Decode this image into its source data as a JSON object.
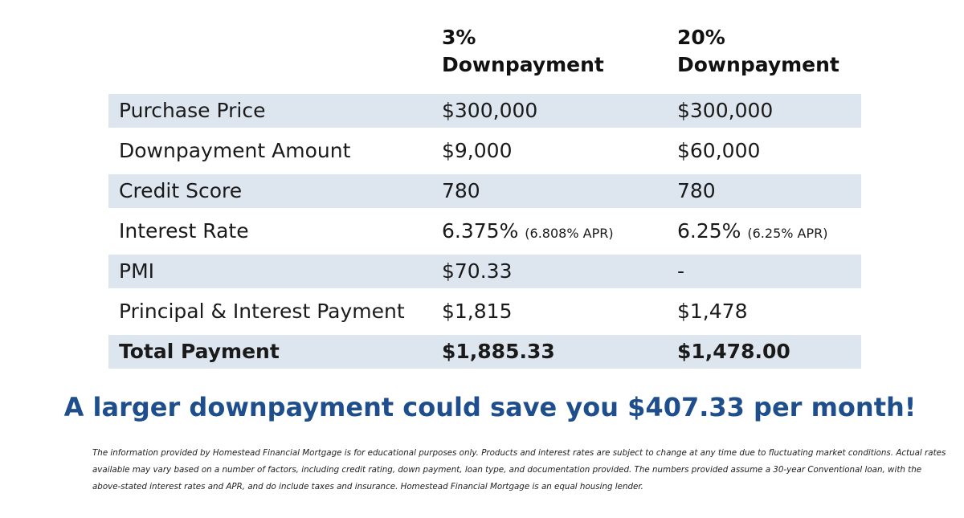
{
  "columns": [
    {
      "line1": "3%",
      "line2": "Downpayment"
    },
    {
      "line1": "20%",
      "line2": "Downpayment"
    }
  ],
  "rows": [
    {
      "label": "Purchase Price",
      "v1": "$300,000",
      "v1_note": "",
      "v2": "$300,000",
      "v2_note": ""
    },
    {
      "label": "Downpayment Amount",
      "v1": "$9,000",
      "v1_note": "",
      "v2": "$60,000",
      "v2_note": ""
    },
    {
      "label": "Credit Score",
      "v1": "780",
      "v1_note": "",
      "v2": "780",
      "v2_note": ""
    },
    {
      "label": "Interest Rate",
      "v1": "6.375%",
      "v1_note": "(6.808% APR)",
      "v2": "6.25%",
      "v2_note": "(6.25% APR)"
    },
    {
      "label": "PMI",
      "v1": "$70.33",
      "v1_note": "",
      "v2": "-",
      "v2_note": ""
    },
    {
      "label": "Principal & Interest Payment",
      "v1": "$1,815",
      "v1_note": "",
      "v2": "$1,478",
      "v2_note": ""
    },
    {
      "label": "Total Payment",
      "v1": "$1,885.33",
      "v1_note": "",
      "v2": "$1,478.00",
      "v2_note": ""
    }
  ],
  "headline": "A larger downpayment could save you $407.33 per month!",
  "disclaimer": "The information provided by Homestead Financial Mortgage is for educational purposes only. Products and interest rates are subject to change at any time due to fluctuating market conditions. Actual rates available may vary based on a number of factors, including credit rating, down payment, loan type, and documentation provided. The numbers provided assume a 30-year Conventional loan, with the above-stated interest rates and APR, and do include taxes and insurance. Homestead Financial Mortgage is an equal housing lender.",
  "colors": {
    "row_shade": "#dde5ef",
    "headline": "#1f4e8c"
  }
}
